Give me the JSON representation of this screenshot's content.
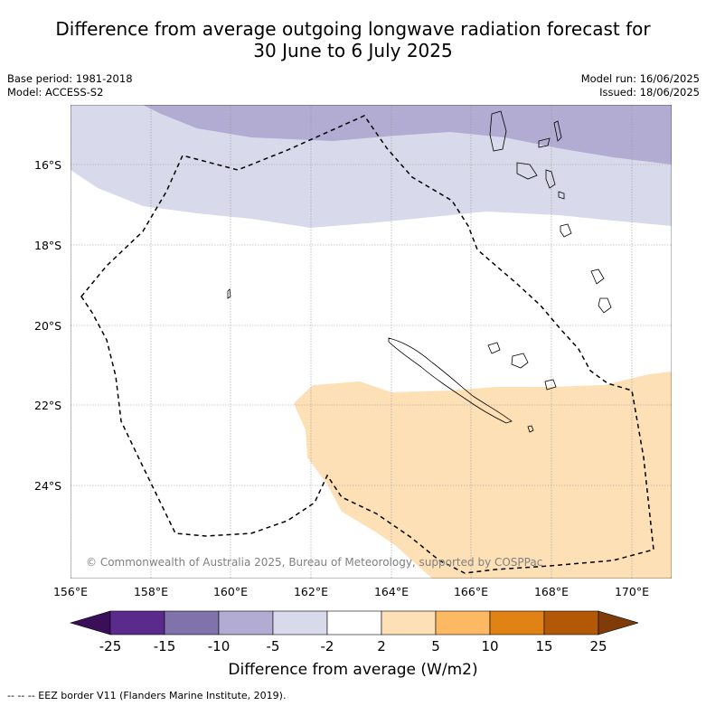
{
  "title": {
    "line1": "Difference from average outgoing longwave radiation forecast for",
    "line2": "30 June to 6 July 2025"
  },
  "meta": {
    "base_period": "Base period: 1981-2018",
    "model": "Model: ACCESS-S2",
    "model_run": "Model run: 16/06/2025",
    "issued": "Issued: 18/06/2025"
  },
  "map": {
    "lat_ticks": [
      "16°S",
      "18°S",
      "20°S",
      "22°S",
      "24°S"
    ],
    "lon_ticks": [
      "156°E",
      "158°E",
      "160°E",
      "162°E",
      "164°E",
      "166°E",
      "168°E",
      "170°E"
    ],
    "copyright": "© Commonwealth of Australia 2025, Bureau of Meteorology, supported by COSPPac"
  },
  "colorbar": {
    "ticks": [
      "-25",
      "-15",
      "-10",
      "-5",
      "-2",
      "2",
      "5",
      "10",
      "15",
      "25"
    ],
    "colors": [
      "#3a0f5a",
      "#5a2a8c",
      "#8073ac",
      "#b2abd2",
      "#d8daeb",
      "#ffffff",
      "#fee0b6",
      "#fdb863",
      "#e08214",
      "#b35806",
      "#7f3b08"
    ],
    "label": "Difference from average (W/m2)"
  },
  "footer": "--  --  -- EEZ border V11 (Flanders Marine Institute, 2019)."
}
